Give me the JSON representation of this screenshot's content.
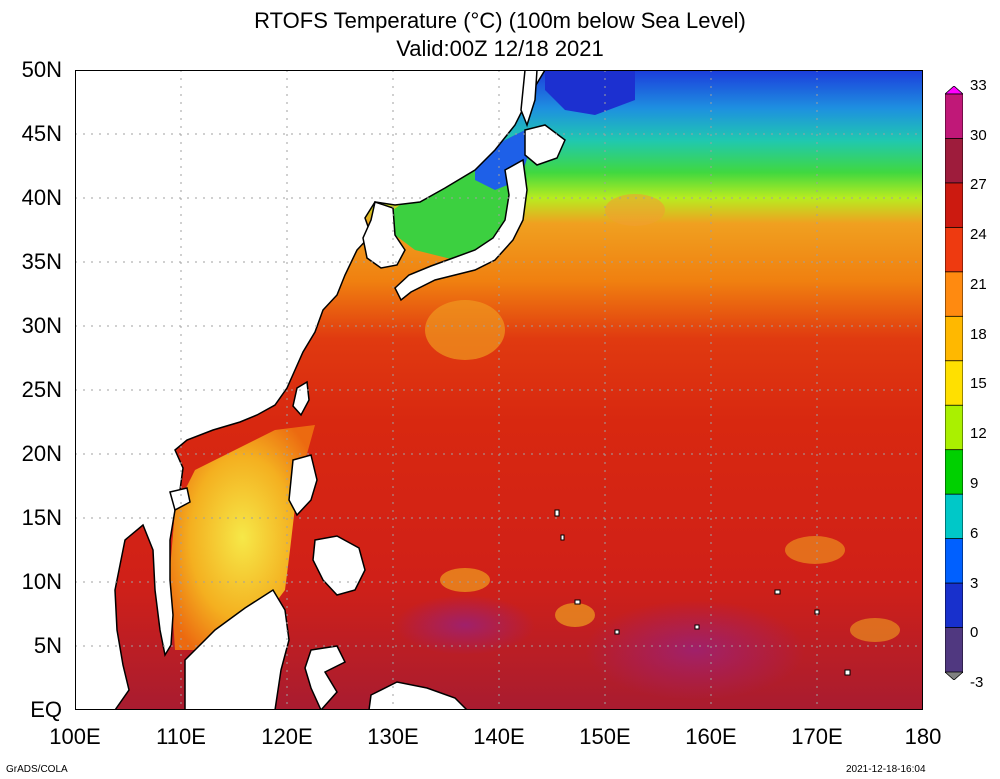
{
  "title": "RTOFS Temperature (°C) (100m below Sea Level)",
  "subtitle": "Valid:00Z 12/18 2021",
  "y_axis_labels": [
    "50N",
    "45N",
    "40N",
    "35N",
    "30N",
    "25N",
    "20N",
    "15N",
    "10N",
    "5N",
    "EQ"
  ],
  "x_axis_labels": [
    "100E",
    "110E",
    "120E",
    "130E",
    "140E",
    "150E",
    "160E",
    "170E",
    "180"
  ],
  "colorbar": {
    "labels": [
      "33",
      "30",
      "27",
      "24",
      "21",
      "18",
      "15",
      "12",
      "9",
      "6",
      "3",
      "0",
      "-3"
    ],
    "colors": [
      "#ff00ff",
      "#c01878",
      "#9e1c3c",
      "#cc1a10",
      "#ee3a10",
      "#ff8a10",
      "#ffb800",
      "#ffe000",
      "#aaf000",
      "#00d000",
      "#00c8c8",
      "#0060ff",
      "#1830cc",
      "#503880",
      "#808080"
    ]
  },
  "map": {
    "lon_range": [
      100,
      180
    ],
    "lat_range": [
      0,
      50
    ],
    "grid": "dotted"
  },
  "footer": {
    "left": "GrADS/COLA",
    "right": "2021-12-18-16:04"
  }
}
